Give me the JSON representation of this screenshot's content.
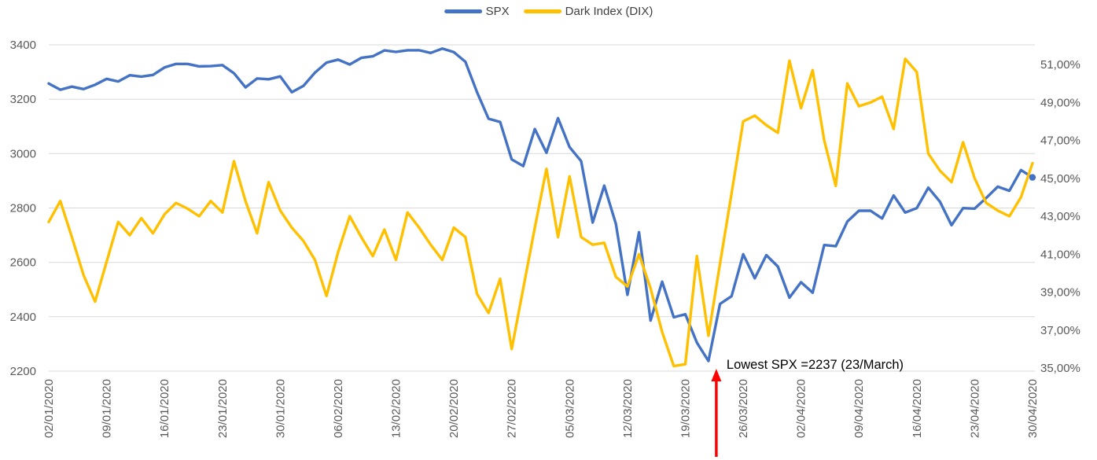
{
  "colors": {
    "spx_line": "#4472C4",
    "dix_line": "#FFC000",
    "gridline": "#D9D9D9",
    "tick_text": "#595959",
    "legend_text": "#404040",
    "annotation_text": "#000000",
    "arrow": "#FF0000",
    "background": "#FFFFFF"
  },
  "chart_data": {
    "type": "line",
    "title": "",
    "legend_position": "top",
    "grid": true,
    "left_axis": {
      "min": 2200,
      "max": 3400,
      "step": 200,
      "labels": [
        "2200",
        "2400",
        "2600",
        "2800",
        "3000",
        "3200",
        "3400"
      ]
    },
    "right_axis": {
      "min": 35,
      "max": 52.04,
      "step": 2,
      "labels": [
        "35,00%",
        "37,00%",
        "39,00%",
        "41,00%",
        "43,00%",
        "45,00%",
        "47,00%",
        "49,00%",
        "51,00%"
      ]
    },
    "x_tick_every": 5,
    "x_tick_labels": [
      "02/01/2020",
      "09/01/2020",
      "16/01/2020",
      "23/01/2020",
      "30/01/2020",
      "06/02/2020",
      "13/02/2020",
      "20/02/2020",
      "27/02/2020",
      "05/03/2020",
      "12/03/2020",
      "19/03/2020",
      "26/03/2020",
      "02/04/2020",
      "09/04/2020",
      "16/04/2020",
      "23/04/2020",
      "30/04/2020"
    ],
    "dates": [
      "02/01/2020",
      "03/01/2020",
      "06/01/2020",
      "07/01/2020",
      "08/01/2020",
      "09/01/2020",
      "10/01/2020",
      "13/01/2020",
      "14/01/2020",
      "15/01/2020",
      "16/01/2020",
      "17/01/2020",
      "20/01/2020",
      "21/01/2020",
      "22/01/2020",
      "23/01/2020",
      "24/01/2020",
      "27/01/2020",
      "28/01/2020",
      "29/01/2020",
      "30/01/2020",
      "31/01/2020",
      "03/02/2020",
      "04/02/2020",
      "05/02/2020",
      "06/02/2020",
      "07/02/2020",
      "10/02/2020",
      "11/02/2020",
      "12/02/2020",
      "13/02/2020",
      "14/02/2020",
      "17/02/2020",
      "18/02/2020",
      "19/02/2020",
      "20/02/2020",
      "21/02/2020",
      "24/02/2020",
      "25/02/2020",
      "26/02/2020",
      "27/02/2020",
      "28/02/2020",
      "02/03/2020",
      "03/03/2020",
      "04/03/2020",
      "05/03/2020",
      "06/03/2020",
      "09/03/2020",
      "10/03/2020",
      "11/03/2020",
      "12/03/2020",
      "13/03/2020",
      "16/03/2020",
      "17/03/2020",
      "18/03/2020",
      "19/03/2020",
      "20/03/2020",
      "23/03/2020",
      "24/03/2020",
      "25/03/2020",
      "26/03/2020",
      "27/03/2020",
      "30/03/2020",
      "31/03/2020",
      "01/04/2020",
      "02/04/2020",
      "03/04/2020",
      "06/04/2020",
      "07/04/2020",
      "08/04/2020",
      "09/04/2020",
      "10/04/2020",
      "13/04/2020",
      "14/04/2020",
      "15/04/2020",
      "16/04/2020",
      "17/04/2020",
      "20/04/2020",
      "21/04/2020",
      "22/04/2020",
      "23/04/2020",
      "24/04/2020",
      "27/04/2020",
      "28/04/2020",
      "29/04/2020",
      "30/04/2020"
    ],
    "series": [
      {
        "name": "SPX",
        "axis": "left",
        "color": "#4472C4",
        "end_marker": true,
        "values": [
          3257.85,
          3234.85,
          3246.28,
          3237.18,
          3253.05,
          3274.7,
          3265.35,
          3288.13,
          3283.15,
          3289.29,
          3316.81,
          3329.62,
          3329.62,
          3320.79,
          3321.75,
          3325.54,
          3295.47,
          3243.63,
          3276.24,
          3273.4,
          3283.66,
          3225.52,
          3248.92,
          3297.59,
          3334.69,
          3345.78,
          3327.71,
          3352.09,
          3357.75,
          3379.45,
          3373.94,
          3380.16,
          3380.16,
          3370.29,
          3386.15,
          3373.23,
          3337.75,
          3225.89,
          3128.21,
          3116.39,
          2978.76,
          2954.22,
          3090.23,
          3003.37,
          3130.12,
          3023.94,
          2972.37,
          2746.56,
          2882.23,
          2741.38,
          2480.64,
          2711.02,
          2386.13,
          2529.19,
          2398.1,
          2409.39,
          2304.92,
          2237.4,
          2447.33,
          2475.56,
          2630.07,
          2541.47,
          2626.65,
          2584.59,
          2470.5,
          2526.9,
          2488.65,
          2663.68,
          2659.41,
          2749.98,
          2789.82,
          2789.82,
          2761.63,
          2846.06,
          2783.36,
          2799.55,
          2874.56,
          2823.16,
          2736.56,
          2799.31,
          2797.8,
          2836.74,
          2878.48,
          2863.39,
          2939.51,
          2912.43
        ]
      },
      {
        "name": "Dark Index (DIX)",
        "axis": "right",
        "color": "#FFC000",
        "end_marker": false,
        "values": [
          42.7,
          43.8,
          41.9,
          39.9,
          38.5,
          40.6,
          42.7,
          42.0,
          42.9,
          42.1,
          43.1,
          43.7,
          43.4,
          43.0,
          43.8,
          43.2,
          45.9,
          43.8,
          42.1,
          44.8,
          43.3,
          42.4,
          41.7,
          40.7,
          38.8,
          41.1,
          43.0,
          41.9,
          40.9,
          42.3,
          40.7,
          43.2,
          42.4,
          41.5,
          40.7,
          42.4,
          41.9,
          38.9,
          37.9,
          39.7,
          36.0,
          39.2,
          42.4,
          45.5,
          41.9,
          45.1,
          41.9,
          41.5,
          41.6,
          39.8,
          39.3,
          41.0,
          39.2,
          36.9,
          35.1,
          35.2,
          40.9,
          36.7,
          40.5,
          44.2,
          48.0,
          48.3,
          47.8,
          47.4,
          51.2,
          48.7,
          50.7,
          47.0,
          44.6,
          50.0,
          48.8,
          49.0,
          49.3,
          47.6,
          51.3,
          50.6,
          46.3,
          45.4,
          44.8,
          46.9,
          45.0,
          43.7,
          43.3,
          43.0,
          44.0,
          45.8
        ]
      }
    ],
    "annotation": {
      "text": "Lowest SPX =2237 (23/March)",
      "arrow_date": "23/03/2020",
      "arrow_points_to_series": "SPX"
    }
  }
}
